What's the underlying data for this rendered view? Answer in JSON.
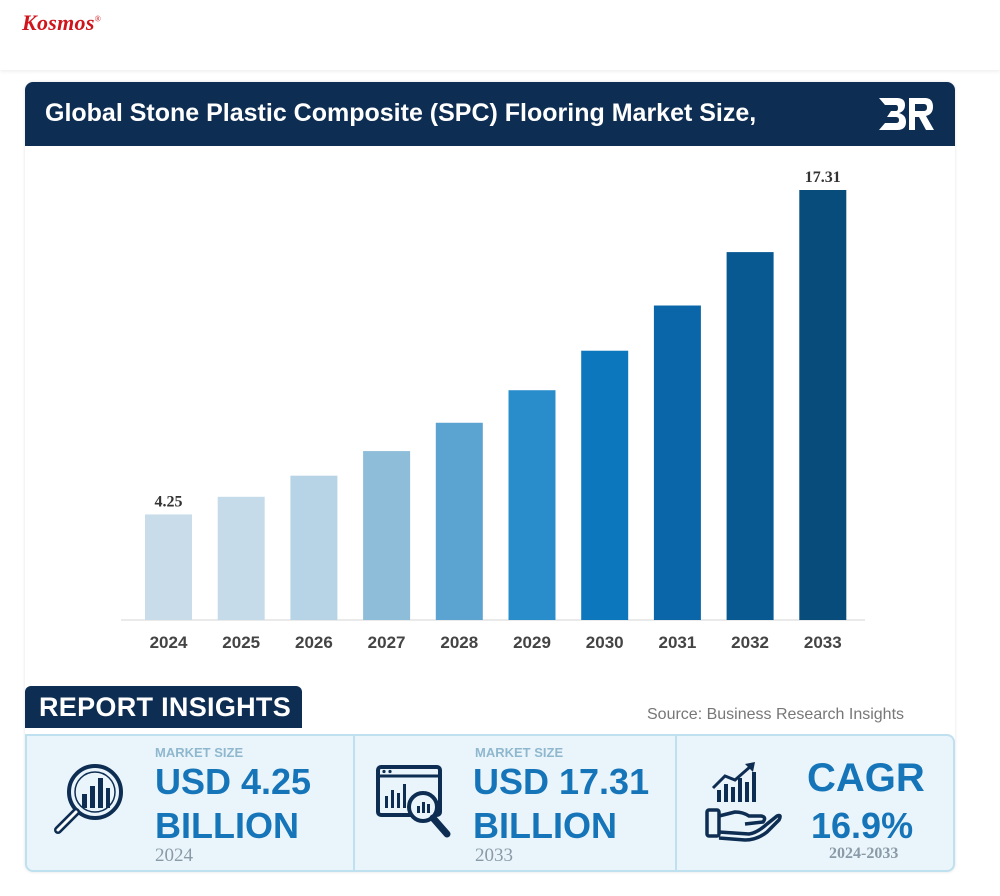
{
  "brand": {
    "name": "Kosmos",
    "mark": "®"
  },
  "header": {
    "title": "Global Stone Plastic Composite (SPC) Flooring Market Size,",
    "logo_text": "BR"
  },
  "chart_data": {
    "type": "bar",
    "title": "Global Stone Plastic Composite (SPC) Flooring Market Size,",
    "xlabel": "",
    "ylabel": "",
    "categories": [
      "2024",
      "2025",
      "2026",
      "2027",
      "2028",
      "2029",
      "2030",
      "2031",
      "2032",
      "2033"
    ],
    "values": [
      4.25,
      4.96,
      5.81,
      6.8,
      7.94,
      9.25,
      10.84,
      12.66,
      14.81,
      17.31
    ],
    "data_labels": [
      "4.25",
      "",
      "",
      "",
      "",
      "",
      "",
      "",
      "",
      "17.31"
    ],
    "colors": [
      "#c9dcea",
      "#c6dbea",
      "#b7d4e6",
      "#8ebdda",
      "#5ba3d0",
      "#2a8dcb",
      "#0d77bd",
      "#0a66a8",
      "#085891",
      "#074c7a"
    ],
    "ylim": [
      0,
      17.31
    ],
    "grid": false,
    "legend": "none"
  },
  "insights": {
    "tab_label": "REPORT INSIGHTS",
    "source_prefix": "Source:",
    "source_name": "Business Research Insights",
    "panels": [
      {
        "label": "MARKET SIZE",
        "line1": "USD 4.25",
        "line2": "BILLION",
        "year": "2024",
        "icon": "magnifier-chart-icon"
      },
      {
        "label": "MARKET SIZE",
        "line1": "USD 17.31",
        "line2": "BILLION",
        "year": "2033",
        "icon": "monitor-analytics-icon"
      },
      {
        "label": "",
        "line1": "CAGR",
        "line2": "16.9%",
        "year": "2024-2033",
        "icon": "hand-growth-chart-icon"
      }
    ]
  },
  "colors": {
    "navy": "#0d2d52",
    "accent_blue": "#1675b8",
    "brand_red": "#d0141b"
  }
}
